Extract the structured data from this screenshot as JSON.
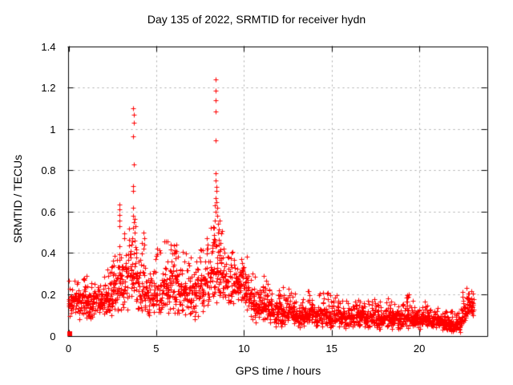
{
  "page": {
    "background": "#ffffff",
    "text_color": "#000000"
  },
  "chart_data": {
    "type": "scatter",
    "title": "Day 135 of 2022, SRMTID for receiver hydn",
    "xlabel": "GPS time / hours",
    "ylabel": "SRMTID / TECUs",
    "xlim": [
      0,
      23.9
    ],
    "ylim": [
      0,
      1.4
    ],
    "xticks": [
      0,
      5,
      10,
      15,
      20
    ],
    "yticks": [
      0,
      0.2,
      0.4,
      0.6,
      0.8,
      1,
      1.2,
      1.4
    ],
    "grid": {
      "show": true,
      "color": "#a8a8a8",
      "dash": [
        2,
        4
      ]
    },
    "axis_color": "#000000",
    "marker": {
      "style": "plus",
      "size": 7,
      "color": "#ff0000"
    },
    "origin_marker": {
      "shape": "filled-square",
      "x": 0.09,
      "y": 0.008,
      "size": 6,
      "color": "#ff0000"
    },
    "legend": {
      "show": false
    },
    "baseline_profile": [
      [
        0.05,
        0.15,
        0.05
      ],
      [
        0.3,
        0.16,
        0.05
      ],
      [
        0.6,
        0.15,
        0.05
      ],
      [
        0.9,
        0.17,
        0.06
      ],
      [
        1.2,
        0.14,
        0.05
      ],
      [
        1.5,
        0.15,
        0.05
      ],
      [
        1.8,
        0.16,
        0.06
      ],
      [
        2.1,
        0.17,
        0.06
      ],
      [
        2.4,
        0.19,
        0.07
      ],
      [
        2.7,
        0.2,
        0.08
      ],
      [
        3.0,
        0.22,
        0.09
      ],
      [
        3.3,
        0.26,
        0.11
      ],
      [
        3.6,
        0.3,
        0.13
      ],
      [
        3.8,
        0.28,
        0.12
      ],
      [
        4.0,
        0.25,
        0.1
      ],
      [
        4.3,
        0.22,
        0.09
      ],
      [
        4.6,
        0.2,
        0.08
      ],
      [
        5.0,
        0.2,
        0.08
      ],
      [
        5.4,
        0.22,
        0.09
      ],
      [
        5.8,
        0.23,
        0.09
      ],
      [
        6.2,
        0.22,
        0.09
      ],
      [
        6.6,
        0.2,
        0.08
      ],
      [
        7.0,
        0.19,
        0.08
      ],
      [
        7.4,
        0.21,
        0.08
      ],
      [
        7.8,
        0.23,
        0.09
      ],
      [
        8.1,
        0.26,
        0.1
      ],
      [
        8.4,
        0.32,
        0.14
      ],
      [
        8.7,
        0.27,
        0.1
      ],
      [
        9.0,
        0.24,
        0.08
      ],
      [
        9.4,
        0.25,
        0.07
      ],
      [
        9.8,
        0.26,
        0.07
      ],
      [
        10.1,
        0.22,
        0.07
      ],
      [
        10.4,
        0.16,
        0.06
      ],
      [
        10.8,
        0.13,
        0.05
      ],
      [
        11.1,
        0.15,
        0.06
      ],
      [
        11.4,
        0.13,
        0.05
      ],
      [
        11.8,
        0.1,
        0.04
      ],
      [
        12.2,
        0.11,
        0.05
      ],
      [
        12.7,
        0.12,
        0.05
      ],
      [
        13.1,
        0.09,
        0.04
      ],
      [
        13.5,
        0.1,
        0.045
      ],
      [
        13.8,
        0.12,
        0.05
      ],
      [
        14.2,
        0.09,
        0.04
      ],
      [
        14.6,
        0.11,
        0.045
      ],
      [
        15.0,
        0.09,
        0.04
      ],
      [
        15.4,
        0.1,
        0.04
      ],
      [
        15.8,
        0.08,
        0.035
      ],
      [
        16.2,
        0.09,
        0.04
      ],
      [
        16.6,
        0.1,
        0.04
      ],
      [
        17.0,
        0.08,
        0.035
      ],
      [
        17.4,
        0.09,
        0.04
      ],
      [
        17.8,
        0.08,
        0.035
      ],
      [
        18.2,
        0.09,
        0.04
      ],
      [
        18.6,
        0.08,
        0.035
      ],
      [
        19.0,
        0.08,
        0.035
      ],
      [
        19.3,
        0.11,
        0.05
      ],
      [
        19.6,
        0.08,
        0.035
      ],
      [
        20.0,
        0.08,
        0.035
      ],
      [
        20.4,
        0.08,
        0.035
      ],
      [
        20.8,
        0.07,
        0.03
      ],
      [
        21.2,
        0.07,
        0.03
      ],
      [
        21.6,
        0.06,
        0.028
      ],
      [
        22.0,
        0.05,
        0.025
      ],
      [
        22.3,
        0.06,
        0.03
      ],
      [
        22.5,
        0.09,
        0.04
      ],
      [
        22.7,
        0.13,
        0.05
      ],
      [
        22.9,
        0.15,
        0.04
      ],
      [
        23.05,
        0.12,
        0.03
      ]
    ],
    "outlier_points": [
      [
        3.7,
        1.1
      ],
      [
        3.71,
        1.068
      ],
      [
        3.72,
        1.031
      ],
      [
        3.7,
        0.964
      ],
      [
        3.72,
        0.828
      ],
      [
        3.68,
        0.724
      ],
      [
        3.66,
        0.7
      ],
      [
        3.68,
        0.62
      ],
      [
        3.7,
        0.58
      ],
      [
        3.73,
        0.55
      ],
      [
        3.66,
        0.52
      ],
      [
        3.75,
        0.5
      ],
      [
        3.62,
        0.47
      ],
      [
        3.78,
        0.46
      ],
      [
        3.6,
        0.44
      ],
      [
        3.8,
        0.43
      ],
      [
        3.56,
        0.41
      ],
      [
        3.84,
        0.4
      ],
      [
        3.52,
        0.38
      ],
      [
        3.88,
        0.38
      ],
      [
        2.88,
        0.635
      ],
      [
        2.9,
        0.61
      ],
      [
        2.91,
        0.585
      ],
      [
        2.89,
        0.555
      ],
      [
        2.92,
        0.53
      ],
      [
        8.37,
        1.24
      ],
      [
        8.37,
        1.185
      ],
      [
        8.37,
        1.14
      ],
      [
        8.37,
        1.085
      ],
      [
        8.37,
        0.945
      ],
      [
        8.37,
        0.785
      ],
      [
        8.4,
        0.75
      ],
      [
        8.41,
        0.72
      ],
      [
        8.43,
        0.7
      ],
      [
        8.38,
        0.665
      ],
      [
        8.44,
        0.645
      ],
      [
        8.46,
        0.62
      ],
      [
        8.4,
        0.6
      ],
      [
        8.48,
        0.58
      ],
      [
        8.35,
        0.555
      ],
      [
        8.5,
        0.54
      ],
      [
        8.31,
        0.52
      ],
      [
        8.52,
        0.5
      ],
      [
        8.28,
        0.485
      ],
      [
        8.55,
        0.465
      ],
      [
        8.25,
        0.45
      ],
      [
        8.58,
        0.44
      ],
      [
        8.21,
        0.425
      ],
      [
        8.6,
        0.41
      ],
      [
        8.17,
        0.4
      ],
      [
        8.63,
        0.39
      ],
      [
        4.28,
        0.5
      ],
      [
        4.3,
        0.47
      ],
      [
        4.31,
        0.44
      ],
      [
        4.26,
        0.42
      ],
      [
        5.05,
        0.42
      ],
      [
        5.05,
        0.395
      ],
      [
        5.66,
        0.36
      ],
      [
        6.12,
        0.4
      ],
      [
        6.12,
        0.375
      ],
      [
        6.6,
        0.36
      ],
      [
        7.48,
        0.38
      ],
      [
        7.5,
        0.36
      ],
      [
        7.9,
        0.47
      ],
      [
        7.92,
        0.44
      ],
      [
        7.95,
        0.42
      ],
      [
        8.85,
        0.42
      ],
      [
        8.88,
        0.4
      ],
      [
        9.1,
        0.38
      ],
      [
        9.3,
        0.33
      ],
      [
        9.85,
        0.37
      ],
      [
        9.9,
        0.35
      ],
      [
        10.0,
        0.33
      ],
      [
        0.88,
        0.27
      ],
      [
        2.2,
        0.32
      ],
      [
        2.45,
        0.33
      ],
      [
        2.6,
        0.34
      ],
      [
        11.1,
        0.233
      ],
      [
        11.15,
        0.21
      ],
      [
        12.25,
        0.194
      ],
      [
        12.7,
        0.207
      ],
      [
        13.7,
        0.214
      ],
      [
        13.75,
        0.195
      ],
      [
        14.55,
        0.18
      ],
      [
        15.4,
        0.17
      ],
      [
        16.6,
        0.165
      ],
      [
        17.3,
        0.165
      ],
      [
        18.3,
        0.15
      ],
      [
        19.28,
        0.185
      ],
      [
        19.3,
        0.165
      ],
      [
        19.32,
        0.145
      ],
      [
        19.29,
        0.125
      ],
      [
        20.35,
        0.14
      ],
      [
        22.46,
        0.21
      ],
      [
        22.48,
        0.19
      ],
      [
        22.5,
        0.17
      ],
      [
        22.72,
        0.18
      ],
      [
        22.85,
        0.165
      ],
      [
        23.0,
        0.16
      ]
    ],
    "generator": {
      "seed": 1357,
      "t_start": 0.03,
      "t_end": 23.08,
      "step": 0.046,
      "pts_min": 3,
      "pts_max": 6,
      "x_jitter": 0.012,
      "spread_scale": 1.5,
      "up_prob": 0.1,
      "up_lo": 1.1,
      "up_hi": 2.6,
      "y_min": 0.015
    }
  }
}
